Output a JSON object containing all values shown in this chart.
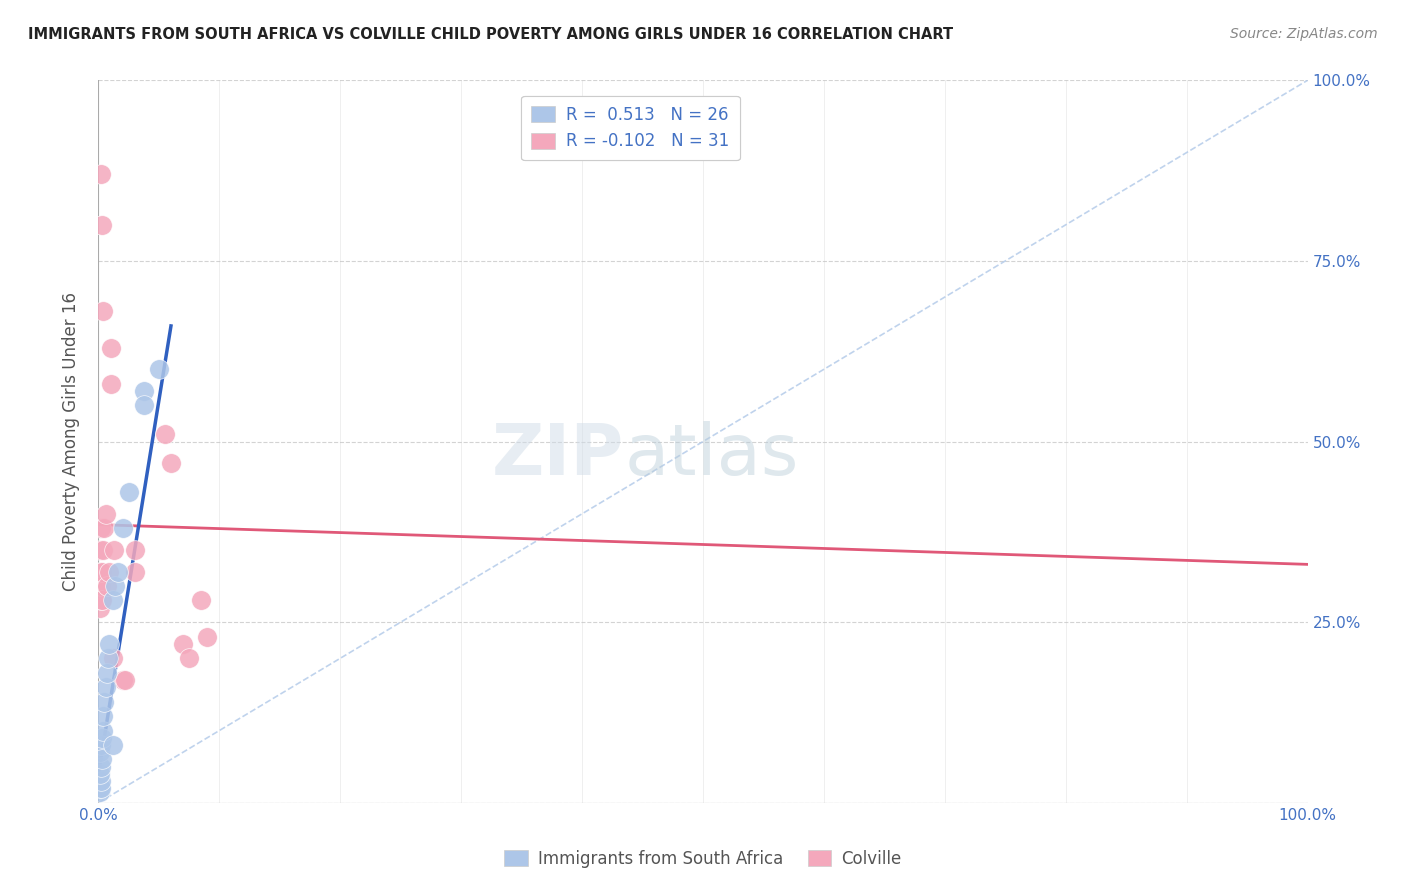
{
  "title": "IMMIGRANTS FROM SOUTH AFRICA VS COLVILLE CHILD POVERTY AMONG GIRLS UNDER 16 CORRELATION CHART",
  "source": "Source: ZipAtlas.com",
  "ylabel": "Child Poverty Among Girls Under 16",
  "blue_color": "#adc6e8",
  "pink_color": "#f4a8bc",
  "blue_line_color": "#3060c0",
  "pink_line_color": "#e05878",
  "diag_color": "#b0c8e8",
  "watermark_zip": "ZIP",
  "watermark_atlas": "atlas",
  "legend_r1": "R =  0.513   N = 26",
  "legend_r2": "R = -0.102   N = 31",
  "blue_scatter": [
    [
      0.001,
      0.015
    ],
    [
      0.001,
      0.02
    ],
    [
      0.002,
      0.02
    ],
    [
      0.002,
      0.03
    ],
    [
      0.001,
      0.04
    ],
    [
      0.002,
      0.05
    ],
    [
      0.001,
      0.07
    ],
    [
      0.002,
      0.08
    ],
    [
      0.003,
      0.06
    ],
    [
      0.003,
      0.09
    ],
    [
      0.004,
      0.1
    ],
    [
      0.004,
      0.12
    ],
    [
      0.005,
      0.14
    ],
    [
      0.006,
      0.16
    ],
    [
      0.007,
      0.18
    ],
    [
      0.008,
      0.2
    ],
    [
      0.009,
      0.22
    ],
    [
      0.012,
      0.28
    ],
    [
      0.014,
      0.3
    ],
    [
      0.016,
      0.32
    ],
    [
      0.02,
      0.38
    ],
    [
      0.025,
      0.43
    ],
    [
      0.038,
      0.57
    ],
    [
      0.038,
      0.55
    ],
    [
      0.05,
      0.6
    ],
    [
      0.012,
      0.08
    ]
  ],
  "pink_scatter": [
    [
      0.001,
      0.27
    ],
    [
      0.001,
      0.3
    ],
    [
      0.001,
      0.32
    ],
    [
      0.001,
      0.35
    ],
    [
      0.002,
      0.38
    ],
    [
      0.002,
      0.28
    ],
    [
      0.002,
      0.3
    ],
    [
      0.003,
      0.32
    ],
    [
      0.003,
      0.28
    ],
    [
      0.004,
      0.35
    ],
    [
      0.005,
      0.38
    ],
    [
      0.006,
      0.4
    ],
    [
      0.007,
      0.3
    ],
    [
      0.009,
      0.32
    ],
    [
      0.01,
      0.63
    ],
    [
      0.01,
      0.58
    ],
    [
      0.012,
      0.2
    ],
    [
      0.013,
      0.35
    ],
    [
      0.02,
      0.17
    ],
    [
      0.022,
      0.17
    ],
    [
      0.03,
      0.35
    ],
    [
      0.03,
      0.32
    ],
    [
      0.055,
      0.51
    ],
    [
      0.06,
      0.47
    ],
    [
      0.07,
      0.22
    ],
    [
      0.075,
      0.2
    ],
    [
      0.085,
      0.28
    ],
    [
      0.09,
      0.23
    ],
    [
      0.002,
      0.87
    ],
    [
      0.003,
      0.8
    ],
    [
      0.004,
      0.68
    ]
  ],
  "blue_line_x": [
    0.0,
    0.06
  ],
  "blue_line_y": [
    0.04,
    0.66
  ],
  "pink_line_x": [
    0.0,
    1.0
  ],
  "pink_line_y": [
    0.385,
    0.33
  ],
  "diag_line_x": [
    0.0,
    1.0
  ],
  "diag_line_y": [
    0.0,
    1.0
  ],
  "xlim": [
    0.0,
    1.0
  ],
  "ylim": [
    0.0,
    1.0
  ]
}
